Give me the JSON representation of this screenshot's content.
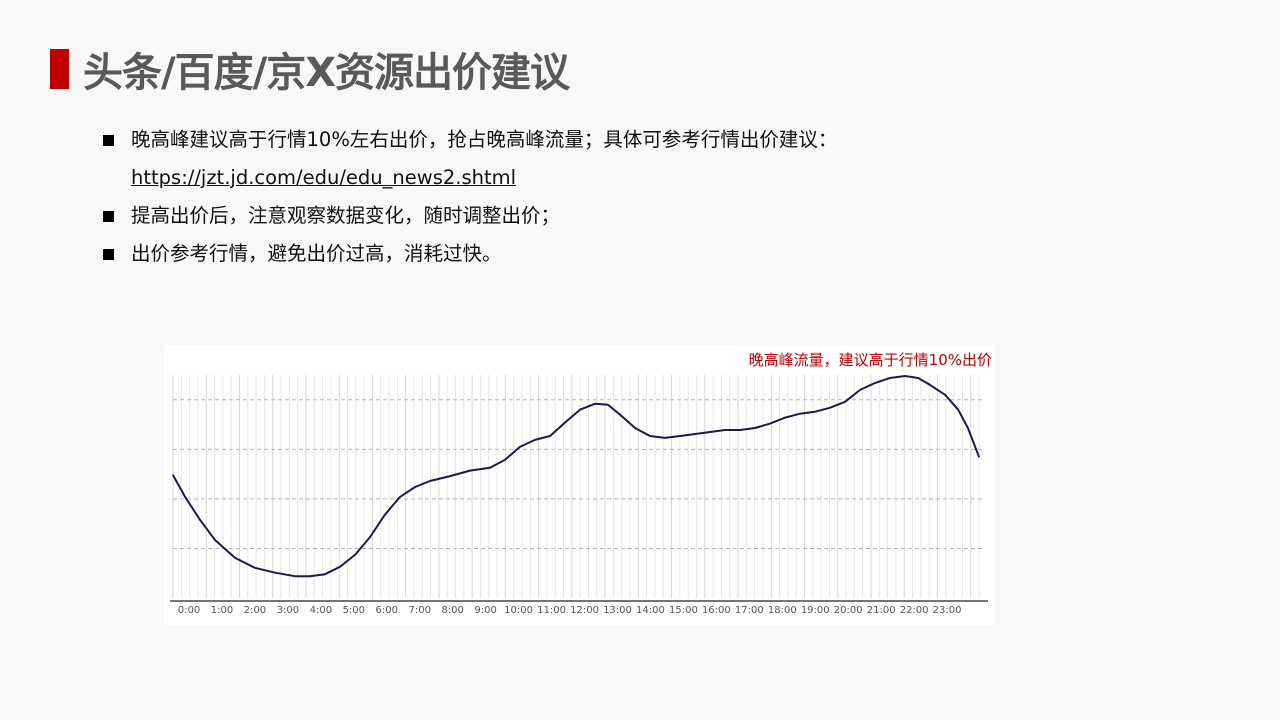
{
  "header": {
    "title": "头条/百度/京X资源出价建议",
    "accent_color": "#c00000"
  },
  "bullets": [
    {
      "text": "晚高峰建议高于行情10%左右出价，抢占晚高峰流量；具体可参考行情出价建议：",
      "link": "https://jzt.jd.com/edu/edu_news2.shtml"
    },
    {
      "text": "提高出价后，注意观察数据变化，随时调整出价；"
    },
    {
      "text": " 出价参考行情，避免出价过高，消耗过快。"
    }
  ],
  "chart_data": {
    "type": "line",
    "annotation": "晚高峰流量，建议高于行情10%出价",
    "x_tick_labels": [
      "0:00",
      "1:00",
      "2:00",
      "3:00",
      "4:00",
      "5:00",
      "6:00",
      "7:00",
      "8:00",
      "9:00",
      "10:00",
      "11:00",
      "12:00",
      "13:00",
      "14:00",
      "15:00",
      "16:00",
      "17:00",
      "18:00",
      "19:00",
      "20:00",
      "21:00",
      "22:00",
      "23:00"
    ],
    "xlim": [
      0,
      24
    ],
    "ylim": [
      0,
      4.5
    ],
    "y_tick_labels_shown": false,
    "grid": {
      "horizontal": "dashed",
      "vertical": true
    },
    "line_color": "#1a1a4e",
    "series": [
      {
        "x": [
          0.0,
          0.36,
          0.8,
          1.25,
          1.85,
          2.44,
          3.04,
          3.63,
          4.08,
          4.53,
          4.97,
          5.42,
          5.87,
          6.31,
          6.76,
          7.21,
          7.65,
          8.25,
          8.84,
          9.44,
          9.89,
          10.33,
          10.78,
          11.23,
          11.67,
          12.12,
          12.57,
          12.95,
          13.31,
          13.76,
          14.2,
          14.65,
          15.1,
          15.55,
          15.99,
          16.44,
          16.88,
          17.33,
          17.78,
          18.23,
          18.67,
          19.12,
          19.57,
          20.01,
          20.46,
          20.91,
          21.35,
          21.8,
          22.19,
          22.54,
          22.99,
          23.38,
          23.67,
          24.0
        ],
        "y": [
          2.48,
          2.04,
          1.58,
          1.17,
          0.81,
          0.61,
          0.51,
          0.44,
          0.44,
          0.48,
          0.63,
          0.87,
          1.23,
          1.68,
          2.04,
          2.24,
          2.36,
          2.46,
          2.57,
          2.63,
          2.79,
          3.05,
          3.19,
          3.27,
          3.54,
          3.8,
          3.92,
          3.9,
          3.7,
          3.43,
          3.27,
          3.23,
          3.27,
          3.31,
          3.35,
          3.39,
          3.39,
          3.43,
          3.52,
          3.64,
          3.72,
          3.76,
          3.84,
          3.96,
          4.2,
          4.34,
          4.44,
          4.48,
          4.44,
          4.3,
          4.1,
          3.8,
          3.43,
          2.85
        ]
      }
    ]
  }
}
